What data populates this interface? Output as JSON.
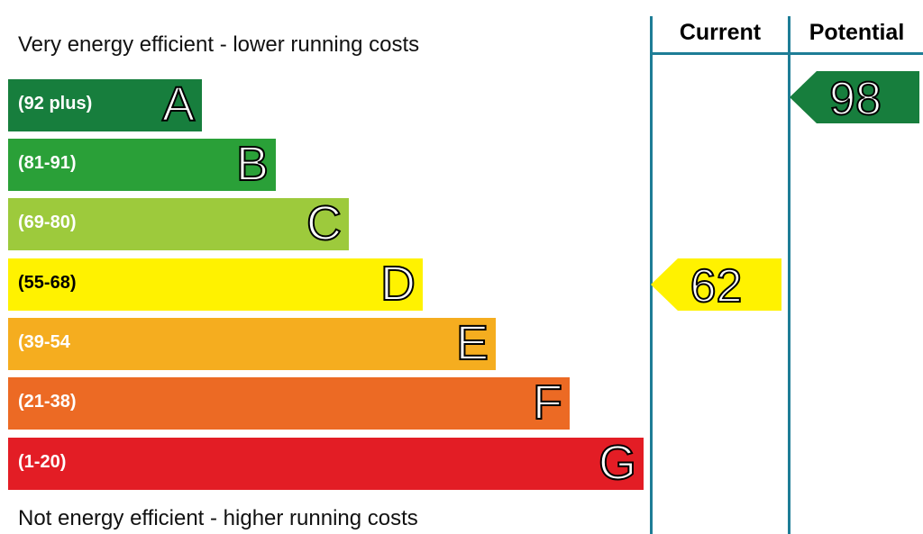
{
  "chart_data": {
    "type": "bar",
    "top_caption": "Very energy efficient - lower running costs",
    "bottom_caption": "Not energy efficient - higher running costs",
    "bands": [
      {
        "letter": "A",
        "range": "(92 plus)",
        "color": "#177e3d"
      },
      {
        "letter": "B",
        "range": "(81-91)",
        "color": "#2aa038"
      },
      {
        "letter": "C",
        "range": "(69-80)",
        "color": "#9dca3c"
      },
      {
        "letter": "D",
        "range": "(55-68)",
        "color": "#fff200"
      },
      {
        "letter": "E",
        "range": "(39-54",
        "color": "#f5ad1f"
      },
      {
        "letter": "F",
        "range": "(21-38)",
        "color": "#ec6a24"
      },
      {
        "letter": "G",
        "range": "(1-20)",
        "color": "#e31d25"
      }
    ],
    "columns": {
      "current": "Current",
      "potential": "Potential"
    },
    "current": {
      "value": "62",
      "band": "D",
      "color": "#fff200"
    },
    "potential": {
      "value": "98",
      "band": "A",
      "color": "#177e3d"
    }
  }
}
